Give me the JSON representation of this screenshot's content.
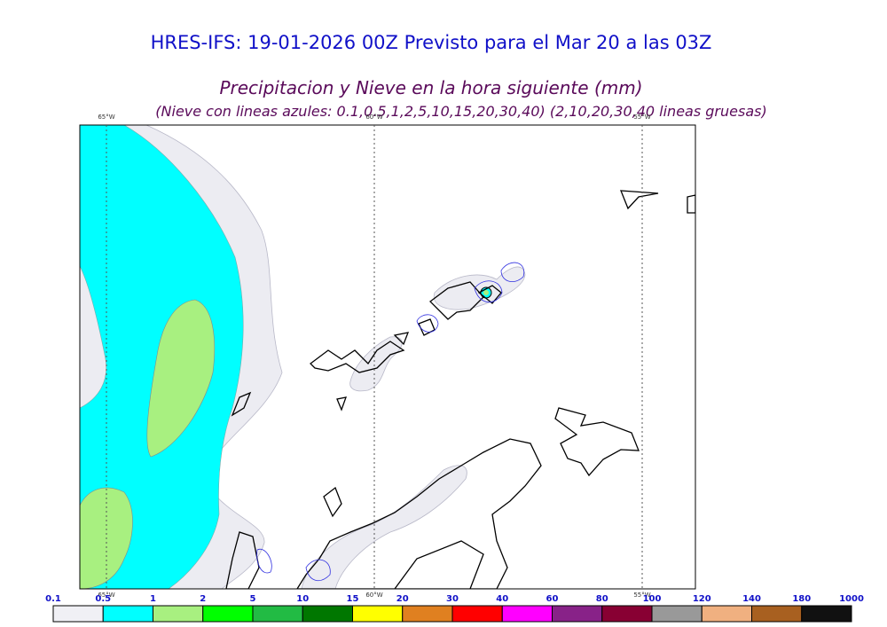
{
  "header": {
    "title": "HRES-IFS: 19-01-2026 00Z Previsto para el Mar 20 a las 03Z",
    "subtitle": "Precipitacion y Nieve en la hora siguiente (mm)",
    "note": "(Nieve con lineas azules: 0.1,0.5,1,2,5,10,15,20,30,40)  (2,10,20,30,40 lineas gruesas)"
  },
  "map": {
    "lon_labels": [
      "65°W",
      "60°W",
      "55°W"
    ]
  },
  "colorbar": {
    "labels": [
      "0.1",
      "0.5",
      "1",
      "2",
      "5",
      "10",
      "15",
      "20",
      "30",
      "40",
      "60",
      "80",
      "100",
      "120",
      "140",
      "180",
      "1000"
    ],
    "colors": [
      "#f0f0f5",
      "#00ffff",
      "#a8f080",
      "#00ff00",
      "#22bb44",
      "#007700",
      "#ffff00",
      "#e08020",
      "#ff0000",
      "#ff00ff",
      "#882288",
      "#880033",
      "#999999",
      "#f0b080",
      "#a86020",
      "#111111"
    ]
  }
}
